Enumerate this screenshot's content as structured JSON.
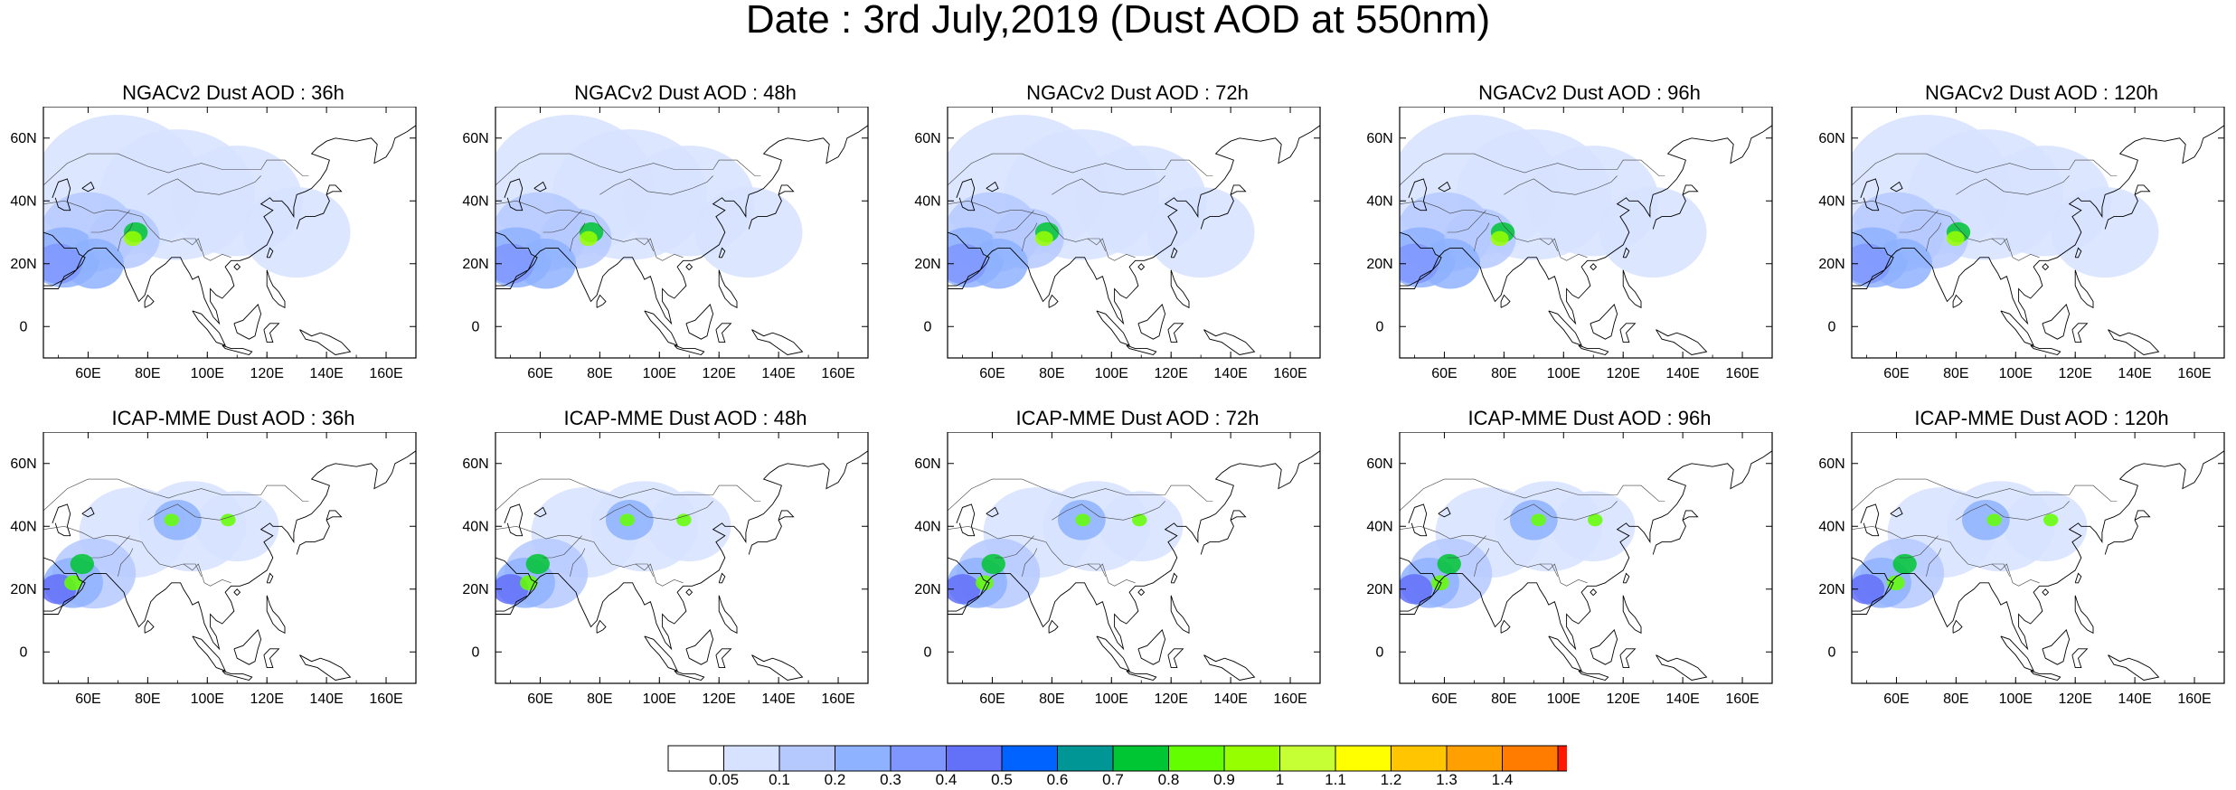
{
  "title": "Date : 3rd July,2019 (Dust AOD at 550nm)",
  "panels": [
    {
      "title": "NGACv2 Dust AOD : 36h",
      "model": "NGACv2",
      "lead": "36h"
    },
    {
      "title": "NGACv2 Dust AOD : 48h",
      "model": "NGACv2",
      "lead": "48h"
    },
    {
      "title": "NGACv2 Dust AOD : 72h",
      "model": "NGACv2",
      "lead": "72h"
    },
    {
      "title": "NGACv2 Dust AOD : 96h",
      "model": "NGACv2",
      "lead": "96h"
    },
    {
      "title": "NGACv2 Dust AOD : 120h",
      "model": "NGACv2",
      "lead": "120h"
    },
    {
      "title": "ICAP-MME Dust AOD : 36h",
      "model": "ICAP-MME",
      "lead": "36h"
    },
    {
      "title": "ICAP-MME Dust AOD : 48h",
      "model": "ICAP-MME",
      "lead": "48h"
    },
    {
      "title": "ICAP-MME Dust AOD : 72h",
      "model": "ICAP-MME",
      "lead": "72h"
    },
    {
      "title": "ICAP-MME Dust AOD : 96h",
      "model": "ICAP-MME",
      "lead": "96h"
    },
    {
      "title": "ICAP-MME Dust AOD : 120h",
      "model": "ICAP-MME",
      "lead": "120h"
    }
  ],
  "map_extent": {
    "lon": [
      45,
      170
    ],
    "lat": [
      -10,
      70
    ]
  },
  "lon_ticks": [
    {
      "value": 60,
      "label": "60E"
    },
    {
      "value": 80,
      "label": "80E"
    },
    {
      "value": 100,
      "label": "100E"
    },
    {
      "value": 120,
      "label": "120E"
    },
    {
      "value": 140,
      "label": "140E"
    },
    {
      "value": 160,
      "label": "160E"
    }
  ],
  "lat_ticks": [
    {
      "value": 60,
      "label": "60N"
    },
    {
      "value": 40,
      "label": "40N"
    },
    {
      "value": 20,
      "label": "20N"
    },
    {
      "value": 0,
      "label": "0"
    }
  ],
  "colorbar": {
    "colors": [
      "#ffffff",
      "#d6e2ff",
      "#b5c9ff",
      "#8eb2ff",
      "#7f96ff",
      "#6370f8",
      "#0063ff",
      "#009696",
      "#00c633",
      "#63ff00",
      "#96ff00",
      "#c6ff33",
      "#ffff00",
      "#ffc600",
      "#ffa000",
      "#ff7c00",
      "#ff1900"
    ],
    "labels": [
      "0.05",
      "0.1",
      "0.2",
      "0.3",
      "0.4",
      "0.5",
      "0.6",
      "0.7",
      "0.8",
      "0.9",
      "1",
      "1.1",
      "1.2",
      "1.3",
      "1.4"
    ]
  }
}
